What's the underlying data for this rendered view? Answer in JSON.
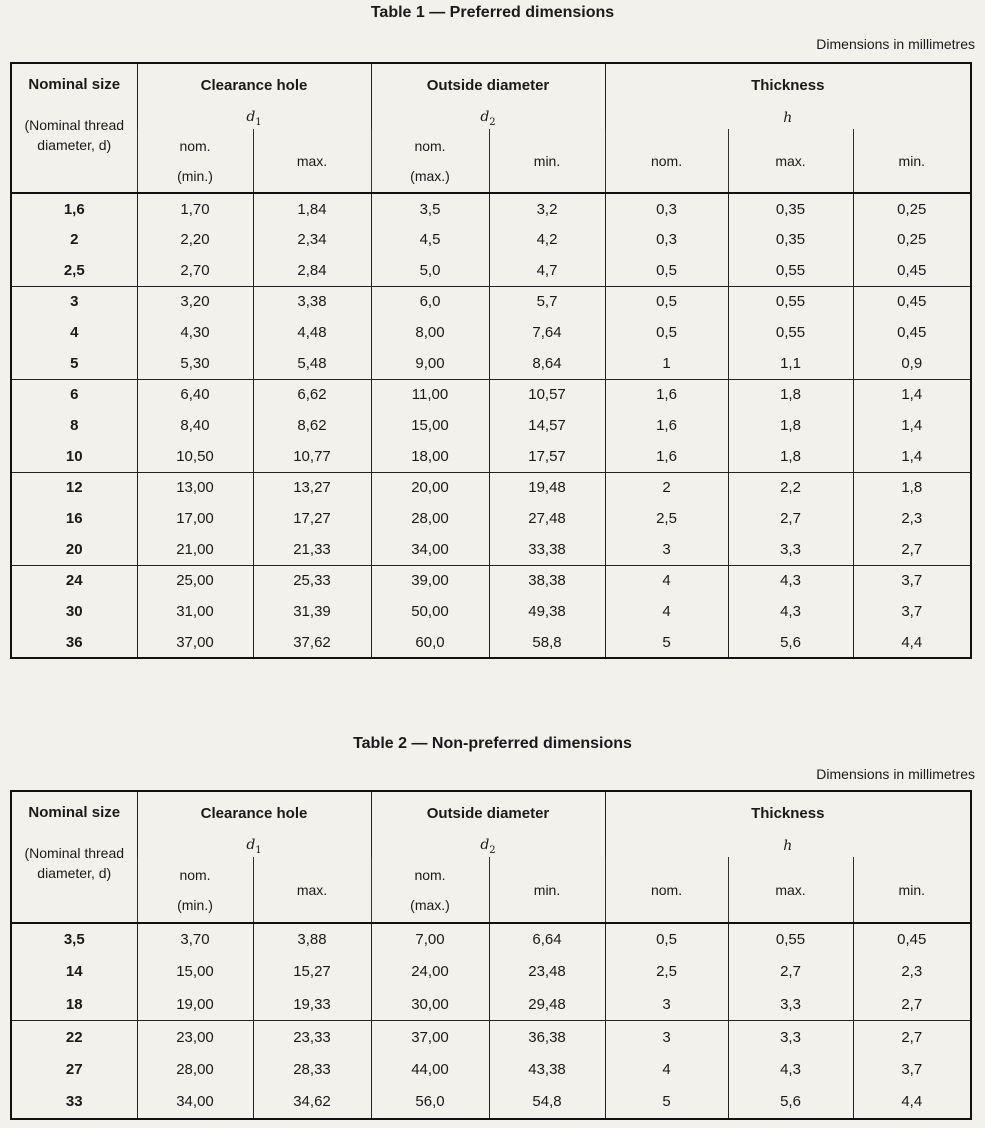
{
  "tables": [
    {
      "title": "Table 1 — Preferred dimensions",
      "note": "Dimensions in millimetres",
      "header": {
        "nominal_size": "Nominal size",
        "nominal_note": "(Nominal thread diameter, d)",
        "columns": [
          {
            "title": "Clearance hole",
            "symbol": "d",
            "subscript": "1",
            "subcolumns": [
              [
                "nom.",
                "(min.)"
              ],
              [
                "max."
              ]
            ]
          },
          {
            "title": "Outside diameter",
            "symbol": "d",
            "subscript": "2",
            "subcolumns": [
              [
                "nom.",
                "(max.)"
              ],
              [
                "min."
              ]
            ]
          },
          {
            "title": "Thickness",
            "symbol": "h",
            "subcolumns": [
              [
                "nom."
              ],
              [
                "max."
              ],
              [
                "min."
              ]
            ]
          }
        ]
      },
      "row_groups": [
        [
          [
            "1,6",
            "1,70",
            "1,84",
            "3,5",
            "3,2",
            "0,3",
            "0,35",
            "0,25"
          ],
          [
            "2",
            "2,20",
            "2,34",
            "4,5",
            "4,2",
            "0,3",
            "0,35",
            "0,25"
          ],
          [
            "2,5",
            "2,70",
            "2,84",
            "5,0",
            "4,7",
            "0,5",
            "0,55",
            "0,45"
          ]
        ],
        [
          [
            "3",
            "3,20",
            "3,38",
            "6,0",
            "5,7",
            "0,5",
            "0,55",
            "0,45"
          ],
          [
            "4",
            "4,30",
            "4,48",
            "8,00",
            "7,64",
            "0,5",
            "0,55",
            "0,45"
          ],
          [
            "5",
            "5,30",
            "5,48",
            "9,00",
            "8,64",
            "1",
            "1,1",
            "0,9"
          ]
        ],
        [
          [
            "6",
            "6,40",
            "6,62",
            "11,00",
            "10,57",
            "1,6",
            "1,8",
            "1,4"
          ],
          [
            "8",
            "8,40",
            "8,62",
            "15,00",
            "14,57",
            "1,6",
            "1,8",
            "1,4"
          ],
          [
            "10",
            "10,50",
            "10,77",
            "18,00",
            "17,57",
            "1,6",
            "1,8",
            "1,4"
          ]
        ],
        [
          [
            "12",
            "13,00",
            "13,27",
            "20,00",
            "19,48",
            "2",
            "2,2",
            "1,8"
          ],
          [
            "16",
            "17,00",
            "17,27",
            "28,00",
            "27,48",
            "2,5",
            "2,7",
            "2,3"
          ],
          [
            "20",
            "21,00",
            "21,33",
            "34,00",
            "33,38",
            "3",
            "3,3",
            "2,7"
          ]
        ],
        [
          [
            "24",
            "25,00",
            "25,33",
            "39,00",
            "38,38",
            "4",
            "4,3",
            "3,7"
          ],
          [
            "30",
            "31,00",
            "31,39",
            "50,00",
            "49,38",
            "4",
            "4,3",
            "3,7"
          ],
          [
            "36",
            "37,00",
            "37,62",
            "60,0",
            "58,8",
            "5",
            "5,6",
            "4,4"
          ]
        ]
      ]
    },
    {
      "title": "Table 2 — Non-preferred dimensions",
      "note": "Dimensions in millimetres",
      "header": {
        "nominal_size": "Nominal size",
        "nominal_note": "(Nominal thread diameter, d)",
        "columns": [
          {
            "title": "Clearance hole",
            "symbol": "d",
            "subscript": "1",
            "subcolumns": [
              [
                "nom.",
                "(min.)"
              ],
              [
                "max."
              ]
            ]
          },
          {
            "title": "Outside diameter",
            "symbol": "d",
            "subscript": "2",
            "subcolumns": [
              [
                "nom.",
                "(max.)"
              ],
              [
                "min."
              ]
            ]
          },
          {
            "title": "Thickness",
            "symbol": "h",
            "subcolumns": [
              [
                "nom."
              ],
              [
                "max."
              ],
              [
                "min."
              ]
            ]
          }
        ]
      },
      "row_groups": [
        [
          [
            "3,5",
            "3,70",
            "3,88",
            "7,00",
            "6,64",
            "0,5",
            "0,55",
            "0,45"
          ],
          [
            "14",
            "15,00",
            "15,27",
            "24,00",
            "23,48",
            "2,5",
            "2,7",
            "2,3"
          ],
          [
            "18",
            "19,00",
            "19,33",
            "30,00",
            "29,48",
            "3",
            "3,3",
            "2,7"
          ]
        ],
        [
          [
            "22",
            "23,00",
            "23,33",
            "37,00",
            "36,38",
            "3",
            "3,3",
            "2,7"
          ],
          [
            "27",
            "28,00",
            "28,33",
            "44,00",
            "43,38",
            "4",
            "4,3",
            "3,7"
          ],
          [
            "33",
            "34,00",
            "34,62",
            "56,0",
            "54,8",
            "5",
            "5,6",
            "4,4"
          ]
        ]
      ]
    }
  ]
}
